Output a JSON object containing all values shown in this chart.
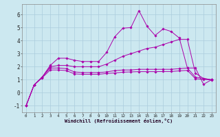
{
  "xlabel": "Windchill (Refroidissement éolien,°C)",
  "ylabel": "",
  "background_color": "#cce8f0",
  "grid_color": "#aaccdd",
  "line_color": "#aa00aa",
  "xlim": [
    -0.5,
    23.5
  ],
  "ylim": [
    -1.5,
    6.8
  ],
  "xticks": [
    0,
    1,
    2,
    3,
    4,
    5,
    6,
    7,
    8,
    9,
    10,
    11,
    12,
    13,
    14,
    15,
    16,
    17,
    18,
    19,
    20,
    21,
    22,
    23
  ],
  "yticks": [
    -1,
    0,
    1,
    2,
    3,
    4,
    5,
    6
  ],
  "series": {
    "line1": {
      "x": [
        0,
        1,
        2,
        3,
        4,
        5,
        6,
        7,
        8,
        9,
        10,
        11,
        12,
        13,
        14,
        15,
        16,
        17,
        18,
        19,
        20,
        21,
        22,
        23
      ],
      "y": [
        -1.0,
        0.6,
        1.2,
        2.1,
        2.65,
        2.65,
        2.5,
        2.4,
        2.4,
        2.4,
        3.1,
        4.3,
        4.95,
        5.0,
        6.3,
        5.1,
        4.4,
        4.9,
        4.7,
        4.2,
        1.9,
        1.9,
        0.65,
        1.0
      ]
    },
    "line2": {
      "x": [
        0,
        1,
        2,
        3,
        4,
        5,
        6,
        7,
        8,
        9,
        10,
        11,
        12,
        13,
        14,
        15,
        16,
        17,
        18,
        19,
        20,
        21,
        22,
        23
      ],
      "y": [
        -1.0,
        0.6,
        1.2,
        2.0,
        2.1,
        2.1,
        2.0,
        2.0,
        2.0,
        2.0,
        2.2,
        2.5,
        2.8,
        3.0,
        3.2,
        3.4,
        3.5,
        3.7,
        3.9,
        4.1,
        4.1,
        1.5,
        1.1,
        1.0
      ]
    },
    "line3": {
      "x": [
        0,
        1,
        2,
        3,
        4,
        5,
        6,
        7,
        8,
        9,
        10,
        11,
        12,
        13,
        14,
        15,
        16,
        17,
        18,
        19,
        20,
        21,
        22,
        23
      ],
      "y": [
        -1.0,
        0.6,
        1.2,
        1.9,
        1.9,
        1.85,
        1.6,
        1.55,
        1.55,
        1.55,
        1.6,
        1.7,
        1.75,
        1.75,
        1.8,
        1.8,
        1.8,
        1.8,
        1.8,
        1.85,
        1.9,
        1.2,
        1.1,
        1.0
      ]
    },
    "line4": {
      "x": [
        0,
        1,
        2,
        3,
        4,
        5,
        6,
        7,
        8,
        9,
        10,
        11,
        12,
        13,
        14,
        15,
        16,
        17,
        18,
        19,
        20,
        21,
        22,
        23
      ],
      "y": [
        -1.0,
        0.6,
        1.15,
        1.75,
        1.75,
        1.7,
        1.45,
        1.42,
        1.42,
        1.42,
        1.48,
        1.52,
        1.58,
        1.6,
        1.62,
        1.62,
        1.62,
        1.63,
        1.63,
        1.68,
        1.72,
        1.08,
        1.03,
        0.98
      ]
    }
  }
}
